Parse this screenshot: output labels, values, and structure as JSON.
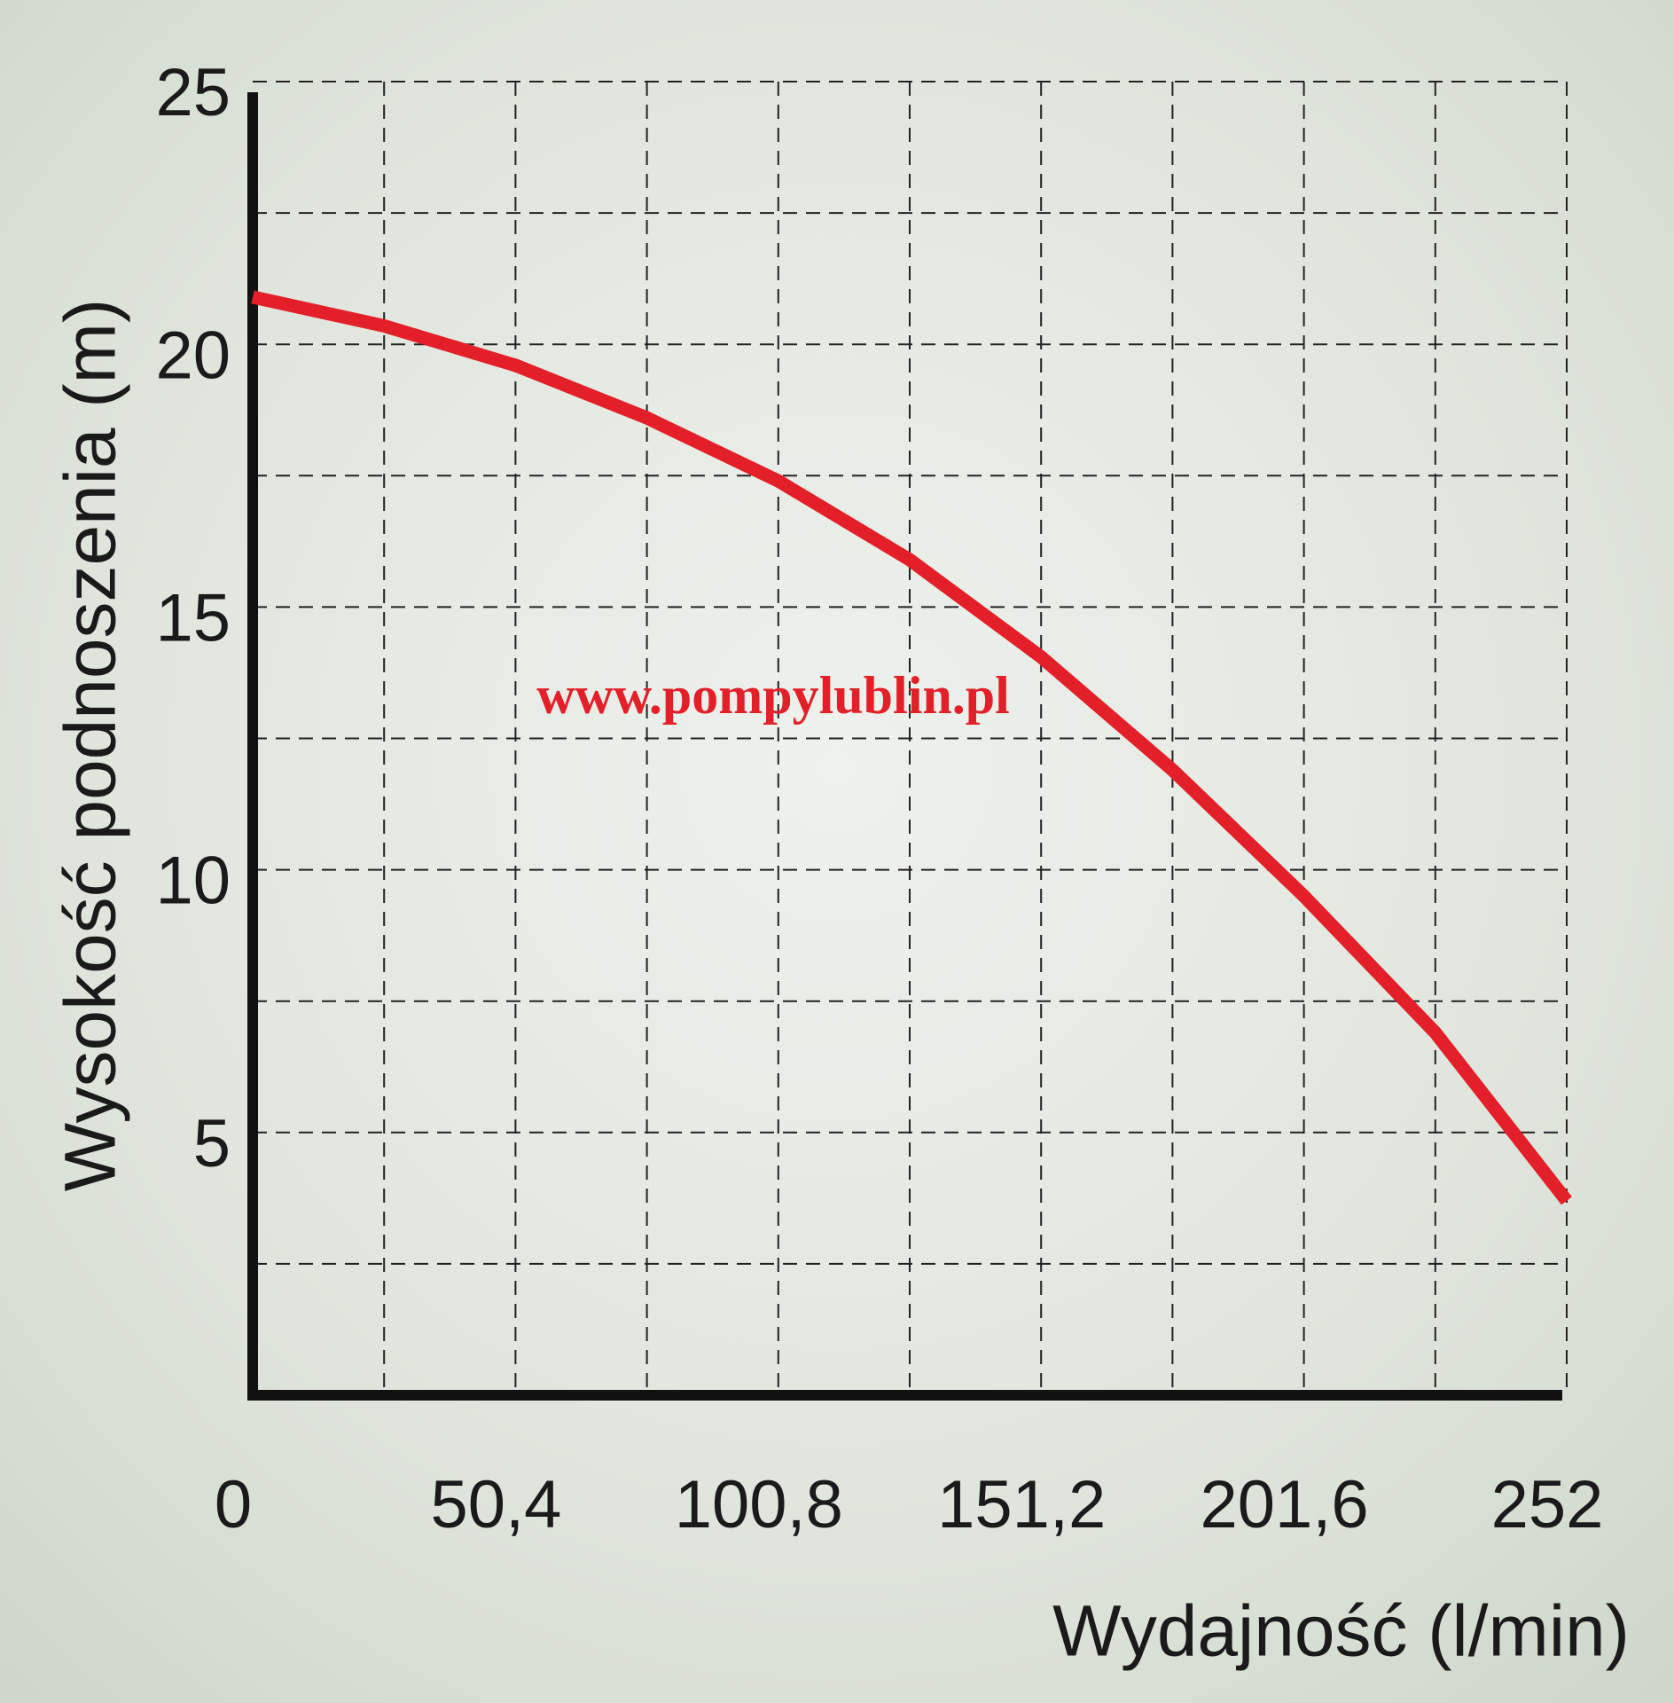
{
  "chart_data": {
    "type": "line",
    "x_label": "Wydajność (l/min)",
    "y_label": "Wysokość podnoszenia (m)",
    "annotation": "www.pompylublin.pl",
    "x": [
      0,
      25.2,
      50.4,
      75.6,
      100.8,
      126,
      151.2,
      176.4,
      201.6,
      226.8,
      252
    ],
    "series": [
      {
        "color": "#e3202a",
        "values": [
          20.9,
          20.35,
          19.6,
          18.6,
          17.4,
          15.9,
          14.05,
          11.9,
          9.5,
          6.9,
          3.7
        ]
      }
    ],
    "xlim": [
      0,
      252
    ],
    "ylim": [
      0,
      25
    ],
    "xticks": [
      0,
      {
        "value": 50.4,
        "label": "50,4"
      },
      {
        "value": 100.8,
        "label": "100,8"
      },
      {
        "value": 151.2,
        "label": "151,2"
      },
      {
        "value": 201.6,
        "label": "201,6"
      },
      252
    ],
    "yticks": [
      5,
      10,
      15,
      20,
      25
    ],
    "xgrid": [
      25.2,
      50.4,
      75.6,
      100.8,
      126,
      151.2,
      176.4,
      201.6,
      226.8,
      252
    ],
    "ygrid": [
      2.5,
      5,
      7.5,
      10,
      12.5,
      15,
      17.5,
      20,
      22.5,
      25
    ],
    "grid": true
  }
}
